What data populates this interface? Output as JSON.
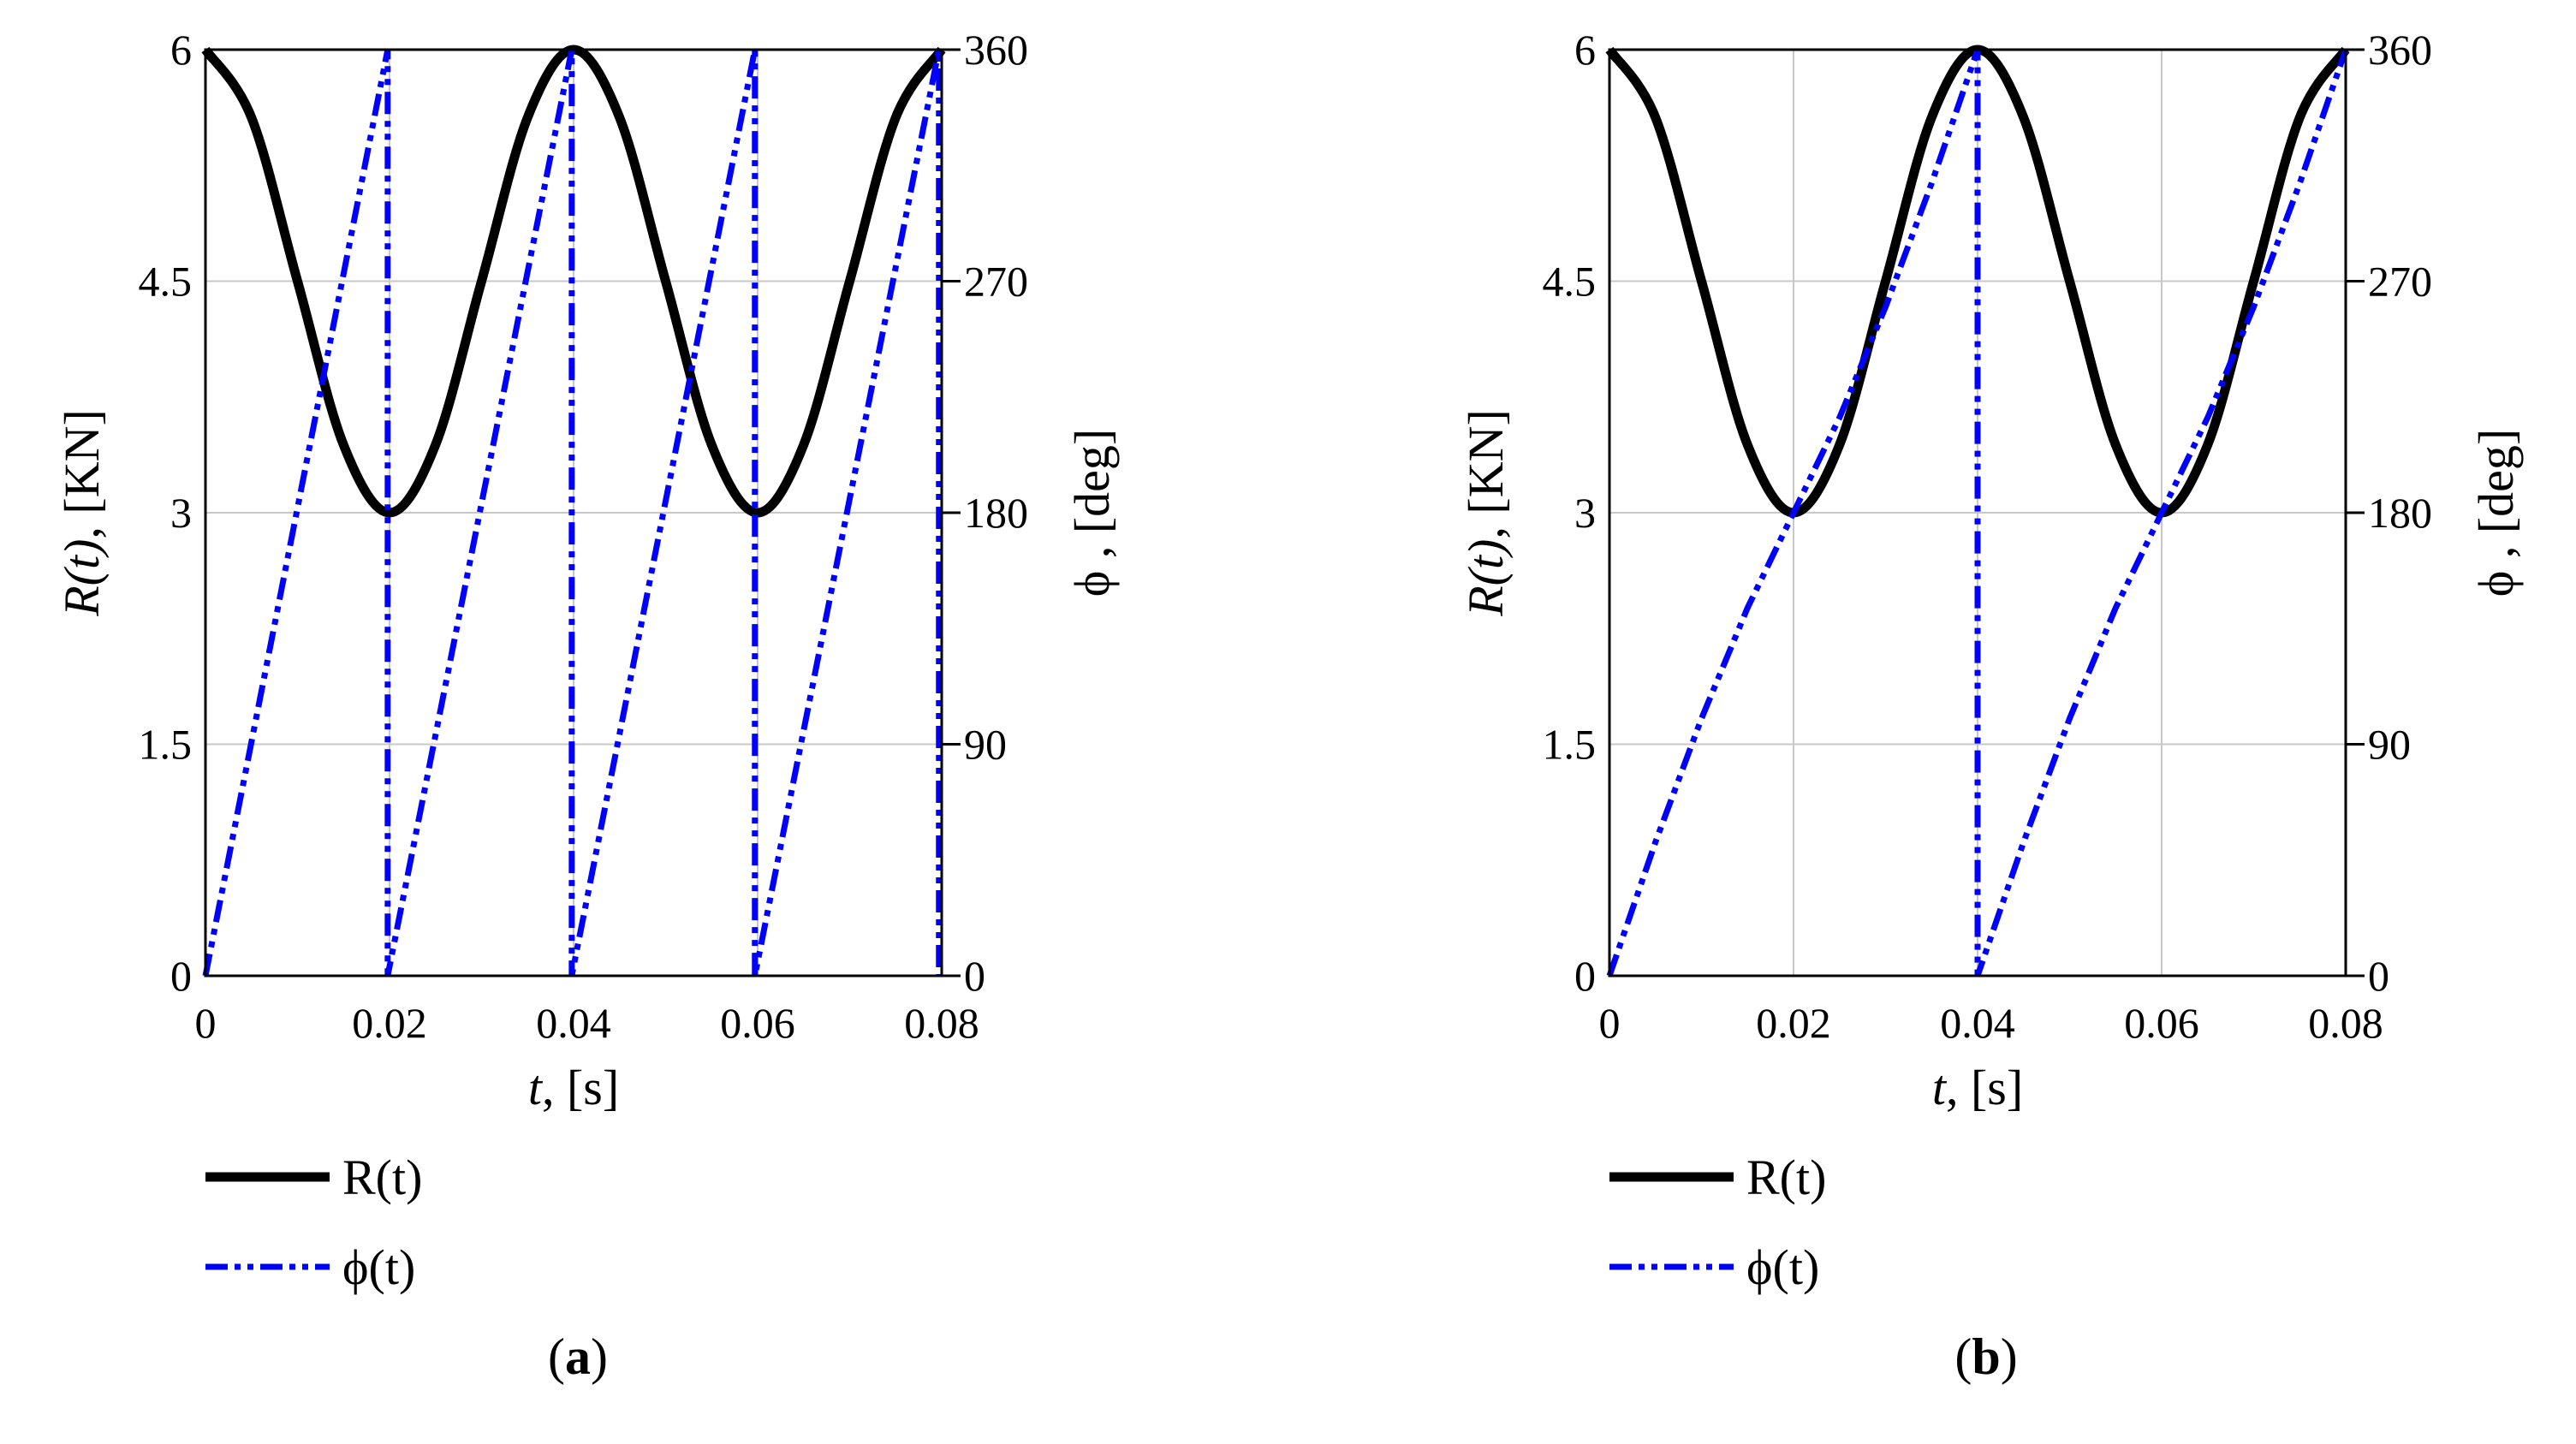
{
  "figure": {
    "panels": [
      {
        "label_open": "(",
        "label_letter": "a",
        "label_close": ")"
      },
      {
        "label_open": "(",
        "label_letter": "b",
        "label_close": ")"
      }
    ]
  },
  "chart_data": [
    {
      "type": "line",
      "panel": "a",
      "xlabel_var": "t",
      "xlabel_unit": ", [s]",
      "ylabel_left_var": "R(t)",
      "ylabel_left_unit": ", [KN]",
      "ylabel_right_sym": "ϕ",
      "ylabel_right_unit": " , [deg]",
      "xlim": [
        0,
        0.08
      ],
      "ylim_left": [
        0,
        6
      ],
      "ylim_right": [
        0,
        360
      ],
      "x_ticks": [
        "0",
        "0.02",
        "0.04",
        "0.06",
        "0.08"
      ],
      "y_left_ticks": [
        "0",
        "1.5",
        "3",
        "4.5",
        "6"
      ],
      "y_right_ticks": [
        "0",
        "90",
        "180",
        "270",
        "360"
      ],
      "grid": true,
      "legend_position": "bottom-left, below plot",
      "series": [
        {
          "name": "R(t)",
          "axis": "left",
          "style": "solid",
          "color": "#000000",
          "x": [
            0,
            0.005,
            0.01,
            0.015,
            0.02,
            0.025,
            0.03,
            0.035,
            0.04,
            0.045,
            0.05,
            0.055,
            0.06,
            0.065,
            0.07,
            0.075,
            0.08
          ],
          "values": [
            6.0,
            5.56,
            4.5,
            3.44,
            3.0,
            3.44,
            4.5,
            5.56,
            6.0,
            5.56,
            4.5,
            3.44,
            3.0,
            3.44,
            4.5,
            5.56,
            6.0
          ]
        },
        {
          "name": "ϕ(t)",
          "axis": "right",
          "style": "dash-dot",
          "color": "#0000ff",
          "x": [
            0,
            0.0198,
            0.0198,
            0.0398,
            0.0398,
            0.0597,
            0.0597,
            0.0797,
            0.0797
          ],
          "values": [
            0,
            360,
            0,
            360,
            0,
            360,
            0,
            360,
            0
          ]
        }
      ]
    },
    {
      "type": "line",
      "panel": "b",
      "xlabel_var": "t",
      "xlabel_unit": ", [s]",
      "ylabel_left_var": "R(t)",
      "ylabel_left_unit": ", [KN]",
      "ylabel_right_sym": "ϕ",
      "ylabel_right_unit": " , [deg]",
      "xlim": [
        0,
        0.08
      ],
      "ylim_left": [
        0,
        6
      ],
      "ylim_right": [
        0,
        360
      ],
      "x_ticks": [
        "0",
        "0.02",
        "0.04",
        "0.06",
        "0.08"
      ],
      "y_left_ticks": [
        "0",
        "1.5",
        "3",
        "4.5",
        "6"
      ],
      "y_right_ticks": [
        "0",
        "90",
        "180",
        "270",
        "360"
      ],
      "grid": true,
      "legend_position": "bottom-left, below plot",
      "series": [
        {
          "name": "R(t)",
          "axis": "left",
          "style": "solid",
          "color": "#000000",
          "x": [
            0,
            0.005,
            0.01,
            0.015,
            0.02,
            0.025,
            0.03,
            0.035,
            0.04,
            0.045,
            0.05,
            0.055,
            0.06,
            0.065,
            0.07,
            0.075,
            0.08
          ],
          "values": [
            6.0,
            5.56,
            4.5,
            3.44,
            3.0,
            3.44,
            4.5,
            5.56,
            6.0,
            5.56,
            4.5,
            3.44,
            3.0,
            3.44,
            4.5,
            5.56,
            6.0
          ]
        },
        {
          "name": "ϕ(t)",
          "axis": "right",
          "style": "dash-dot",
          "color": "#0000ff",
          "x": [
            0,
            0.005,
            0.01,
            0.015,
            0.02,
            0.025,
            0.03,
            0.035,
            0.04,
            0.04,
            0.045,
            0.05,
            0.055,
            0.06,
            0.065,
            0.07,
            0.075,
            0.08
          ],
          "values": [
            0,
            52,
            100,
            143,
            180,
            217,
            260,
            308,
            360,
            0,
            52,
            100,
            143,
            180,
            217,
            260,
            308,
            360
          ]
        }
      ]
    }
  ]
}
